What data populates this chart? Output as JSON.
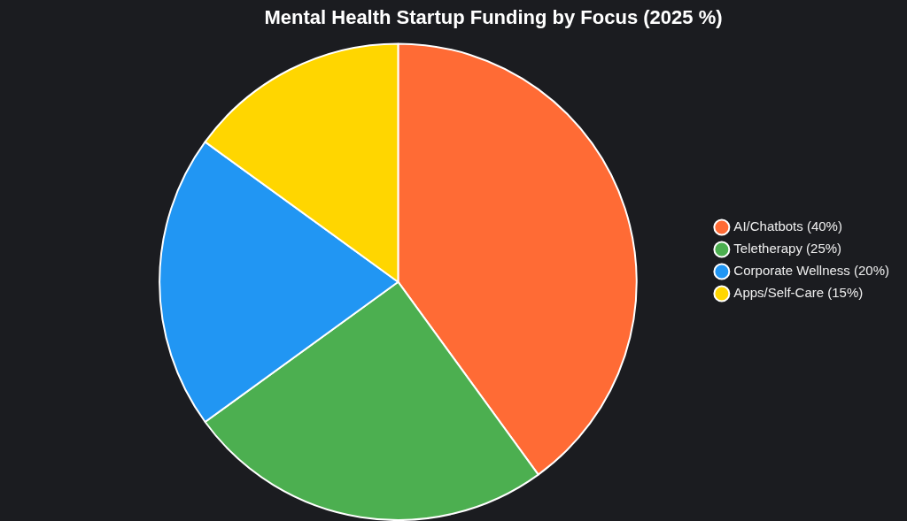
{
  "chart_data": {
    "type": "pie",
    "title": "Mental Health Startup Funding by Focus (2025 %)",
    "categories": [
      "AI/Chatbots (40%)",
      "Teletherapy (25%)",
      "Corporate Wellness (20%)",
      "Apps/Self-Care (15%)"
    ],
    "values": [
      40,
      25,
      20,
      15
    ],
    "colors": [
      "#ff6b35",
      "#4caf50",
      "#2196f3",
      "#ffd600"
    ],
    "legend": "right"
  }
}
